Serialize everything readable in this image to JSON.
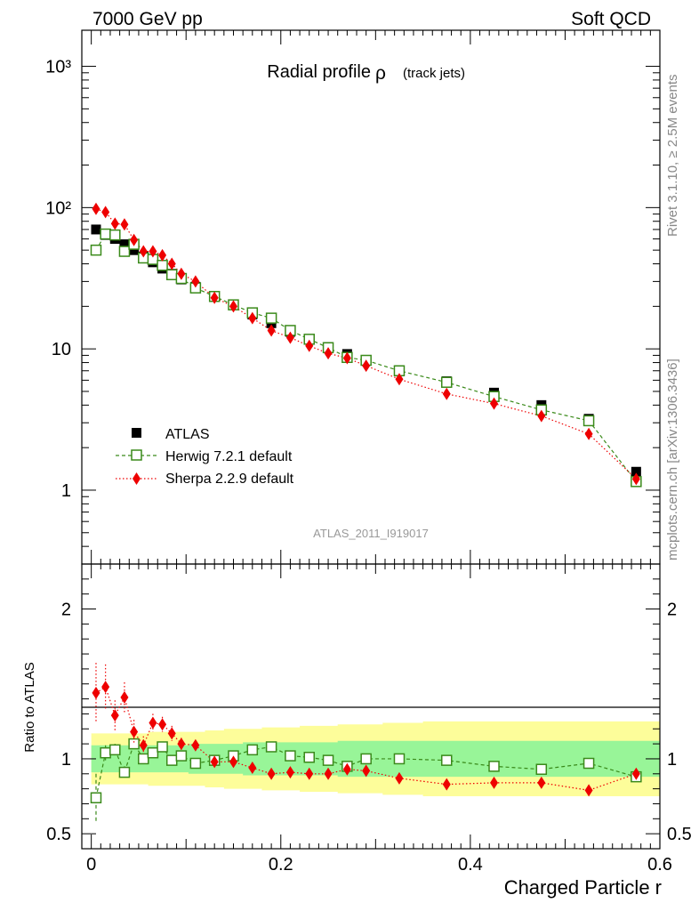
{
  "header": {
    "left": "7000 GeV pp",
    "right": "Soft QCD"
  },
  "side_text": {
    "top": "Rivet 3.1.10, ≥ 2.5M events",
    "bottom": "mcplots.cern.ch [arXiv:1306.3436]"
  },
  "colors": {
    "atlas": "#000000",
    "herwig": "#3a8a1a",
    "sherpa": "#ee0000",
    "band_inner": "#98f598",
    "band_outer": "#fdfd9a"
  },
  "chart_data": [
    {
      "type": "scatter",
      "panel": "main",
      "title": "Radial profile",
      "title_symbol": "ρ",
      "title_suffix": "(track jets)",
      "watermark": "ATLAS_2011_I919017",
      "yscale": "log",
      "ylim": [
        0.3,
        1800
      ],
      "xlim": [
        -0.01,
        0.6
      ],
      "yticks": [
        {
          "value": 1,
          "label": "1"
        },
        {
          "value": 10,
          "label": "10"
        },
        {
          "value": 100,
          "label": "10²"
        },
        {
          "value": 1000,
          "label": "10³"
        }
      ],
      "legend_position": "lower-left",
      "x": [
        0.005,
        0.015,
        0.025,
        0.035,
        0.045,
        0.055,
        0.065,
        0.075,
        0.085,
        0.095,
        0.11,
        0.13,
        0.15,
        0.17,
        0.19,
        0.21,
        0.23,
        0.25,
        0.27,
        0.29,
        0.325,
        0.375,
        0.425,
        0.475,
        0.525,
        0.575
      ],
      "series": [
        {
          "name": "ATLAS",
          "marker": "square-filled",
          "values": [
            70,
            64,
            60,
            55,
            50,
            45,
            41,
            37,
            34,
            31,
            27.5,
            23.5,
            20.5,
            17.5,
            15.2,
            13.2,
            11.7,
            10.3,
            9.2,
            8.3,
            7.0,
            5.9,
            4.9,
            4.0,
            3.2,
            1.35
          ]
        },
        {
          "name": "Herwig 7.2.1 default",
          "marker": "square-open",
          "line": "dashed",
          "values": [
            50,
            65,
            64,
            49,
            55,
            44,
            43,
            39,
            33.5,
            31.5,
            27,
            23.5,
            20.5,
            18,
            16.5,
            13.5,
            11.7,
            10.2,
            8.7,
            8.3,
            7.0,
            5.8,
            4.6,
            3.7,
            3.1,
            1.15
          ]
        },
        {
          "name": "Sherpa 2.2.9 default",
          "marker": "diamond-filled",
          "line": "dotted",
          "values": [
            98,
            93,
            77,
            76,
            59,
            49,
            49,
            46,
            40,
            34,
            30,
            23,
            20,
            16.5,
            13.5,
            12,
            10.5,
            9.3,
            8.6,
            7.6,
            6.1,
            4.8,
            4.1,
            3.35,
            2.5,
            1.2
          ]
        }
      ]
    },
    {
      "type": "scatter",
      "panel": "ratio",
      "ylabel": "Ratio to ATLAS",
      "xlabel": "Charged Particle r",
      "ylim": [
        0.4,
        2.3
      ],
      "xlim": [
        -0.01,
        0.6
      ],
      "yticks": [
        {
          "value": 0.5,
          "label": "0.5"
        },
        {
          "value": 1,
          "label": "1"
        },
        {
          "value": 2,
          "label": "2"
        }
      ],
      "xticks": [
        {
          "value": 0,
          "label": "0"
        },
        {
          "value": 0.2,
          "label": "0.2"
        },
        {
          "value": 0.4,
          "label": "0.4"
        },
        {
          "value": 0.6,
          "label": "0.6"
        }
      ],
      "x": [
        0.005,
        0.015,
        0.025,
        0.035,
        0.045,
        0.055,
        0.065,
        0.075,
        0.085,
        0.095,
        0.11,
        0.13,
        0.15,
        0.17,
        0.19,
        0.21,
        0.23,
        0.25,
        0.27,
        0.29,
        0.325,
        0.375,
        0.425,
        0.475,
        0.525,
        0.575
      ],
      "band_inner_half": [
        0.09,
        0.09,
        0.09,
        0.09,
        0.09,
        0.09,
        0.09,
        0.09,
        0.09,
        0.09,
        0.1,
        0.1,
        0.1,
        0.11,
        0.11,
        0.11,
        0.11,
        0.11,
        0.12,
        0.12,
        0.12,
        0.12,
        0.12,
        0.12,
        0.12,
        0.12
      ],
      "band_outer_half": [
        0.17,
        0.17,
        0.17,
        0.17,
        0.17,
        0.17,
        0.18,
        0.18,
        0.18,
        0.18,
        0.18,
        0.19,
        0.2,
        0.2,
        0.21,
        0.21,
        0.22,
        0.22,
        0.23,
        0.23,
        0.24,
        0.25,
        0.25,
        0.25,
        0.25,
        0.25
      ],
      "series": [
        {
          "name": "Herwig 7.2.1 default",
          "values": [
            0.74,
            1.04,
            1.06,
            0.91,
            1.1,
            1.0,
            1.04,
            1.08,
            0.99,
            1.02,
            0.97,
            0.99,
            1.02,
            1.06,
            1.08,
            1.02,
            1.01,
            0.99,
            0.95,
            1.0,
            1.0,
            0.99,
            0.95,
            0.93,
            0.97,
            0.88
          ],
          "err": [
            0.16,
            0.05,
            0.04,
            0.04,
            0.04,
            0.03,
            0.03,
            0.03,
            0.03,
            0.03,
            0.03,
            0.02,
            0.02,
            0.02,
            0.02,
            0.02,
            0.02,
            0.03,
            0.03,
            0.03,
            0.02,
            0.02,
            0.02,
            0.02,
            0.03,
            0.04
          ]
        },
        {
          "name": "Sherpa 2.2.9 default",
          "values": [
            1.44,
            1.48,
            1.29,
            1.41,
            1.18,
            1.09,
            1.24,
            1.23,
            1.17,
            1.1,
            1.09,
            0.98,
            0.98,
            0.94,
            0.9,
            0.91,
            0.9,
            0.9,
            0.93,
            0.92,
            0.87,
            0.83,
            0.84,
            0.84,
            0.79,
            0.9
          ],
          "err": [
            0.2,
            0.15,
            0.1,
            0.1,
            0.08,
            0.06,
            0.06,
            0.05,
            0.05,
            0.04,
            0.03,
            0.03,
            0.02,
            0.02,
            0.02,
            0.02,
            0.02,
            0.02,
            0.02,
            0.02,
            0.02,
            0.02,
            0.02,
            0.02,
            0.02,
            0.03
          ]
        }
      ]
    }
  ]
}
